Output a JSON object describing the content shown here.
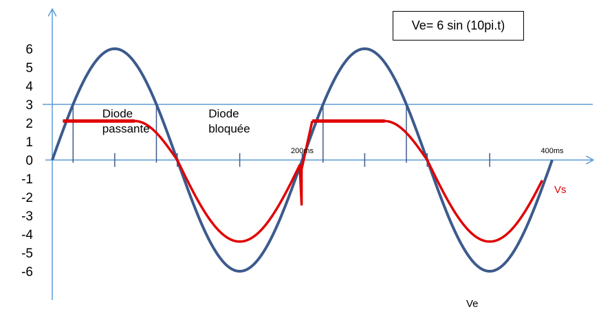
{
  "formula": "Ve= 6 sin (10pi.t)",
  "chart_data": {
    "type": "line",
    "title": "",
    "xlabel": "",
    "ylabel": "",
    "xlim": [
      0,
      400
    ],
    "ylim": [
      -6,
      6
    ],
    "y_ticks": [
      "6",
      "5",
      "4",
      "3",
      "2",
      "1",
      "0",
      "-1",
      "-2",
      "-3",
      "-4",
      "-5",
      "-6"
    ],
    "x_tick_labels": [
      {
        "x": 200,
        "label": "200ms"
      },
      {
        "x": 400,
        "label": "400ms"
      }
    ],
    "threshold": 3,
    "series": [
      {
        "name": "Ve",
        "color": "#3c5a8c",
        "x": [
          0,
          25,
          50,
          75,
          100,
          125,
          150,
          175,
          200,
          225,
          250,
          275,
          300,
          325,
          350,
          375,
          400
        ],
        "y": [
          0,
          4.24,
          6,
          4.24,
          0,
          -4.24,
          -6,
          -4.24,
          0,
          4.24,
          6,
          4.24,
          0,
          -4.24,
          -6,
          -4.24,
          0
        ]
      },
      {
        "name": "Vs",
        "color": "#e00000",
        "x": [
          8.5,
          66,
          100,
          125,
          150,
          175,
          200,
          208,
          266,
          300,
          325,
          350,
          375,
          392
        ],
        "y": [
          2.1,
          2.1,
          0,
          -3.1,
          -4.4,
          -3.1,
          -0.7,
          2.1,
          2.1,
          0,
          -3.1,
          -4.4,
          -3.1,
          -1.1
        ]
      }
    ],
    "annotations": [
      {
        "text": "Diode passante",
        "x": 40,
        "y": 2.3
      },
      {
        "text": "Diode bloquée",
        "x": 125,
        "y": 2.3
      }
    ]
  }
}
